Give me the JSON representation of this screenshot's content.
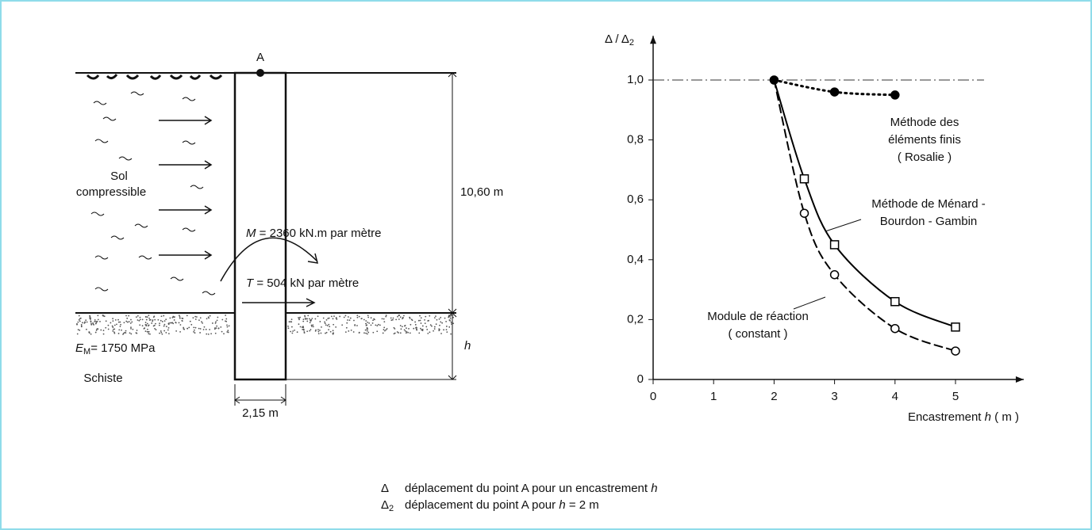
{
  "diagram": {
    "point_label": "A",
    "soil_label": [
      "Sol",
      "compressible"
    ],
    "depth": "10,60 m",
    "moment": {
      "symbol": "M",
      "text": "= 2360 kN.m par mètre"
    },
    "shear": {
      "symbol": "T",
      "text": "= 504 kN par mètre"
    },
    "modulus": {
      "symbol": "E",
      "subscript": "M",
      "text": "= 1750 MPa"
    },
    "rock_label": "Schiste",
    "embedment": "h",
    "width": "2,15 m"
  },
  "chart_data": {
    "type": "line",
    "y_label": {
      "symbol": "Δ / Δ",
      "subscript": "2"
    },
    "x_label": {
      "text": "Encastrement",
      "var": "h",
      "unit": "( m )"
    },
    "xlim": [
      0,
      5.8
    ],
    "xticks": [
      0,
      1,
      2,
      3,
      4,
      5
    ],
    "ylim": [
      0,
      1.1
    ],
    "yticks": [
      0,
      {
        "value": 0.2,
        "label": "0,2"
      },
      {
        "value": 0.4,
        "label": "0,4"
      },
      {
        "value": 0.6,
        "label": "0,6"
      },
      {
        "value": 0.8,
        "label": "0,8"
      },
      {
        "value": 1.0,
        "label": "1,0"
      }
    ],
    "reference_line": 1.0,
    "series": [
      {
        "x": [
          2,
          3,
          4
        ],
        "values": [
          1.0,
          0.96,
          0.95
        ],
        "color": "#000000",
        "line": "dotted",
        "marker": "filled-circle"
      },
      {
        "x": [
          2,
          2.5,
          3,
          4,
          5
        ],
        "values": [
          1.0,
          0.67,
          0.45,
          0.26,
          0.175
        ],
        "color": "#000000",
        "line": "solid",
        "marker": "square"
      },
      {
        "x": [
          2,
          2.5,
          3,
          4,
          5
        ],
        "values": [
          1.0,
          0.555,
          0.35,
          0.17,
          0.095
        ],
        "color": "#000000",
        "line": "dashed",
        "marker": "circle"
      }
    ],
    "annotations": [
      {
        "lines": [
          "Méthode des",
          "éléments finis",
          "( Rosalie )"
        ]
      },
      {
        "lines": [
          "Méthode de Ménard -",
          "Bourdon - Gambin"
        ]
      },
      {
        "lines": [
          "Module de réaction",
          "( constant )"
        ]
      }
    ]
  },
  "legend_notes": [
    {
      "symbol": "Δ",
      "text": "déplacement du point A pour un encastrement",
      "var": "h"
    },
    {
      "symbol": "Δ",
      "subscript": "2",
      "text": "déplacement du point A pour",
      "var": "h",
      "after": "= 2 m"
    }
  ]
}
